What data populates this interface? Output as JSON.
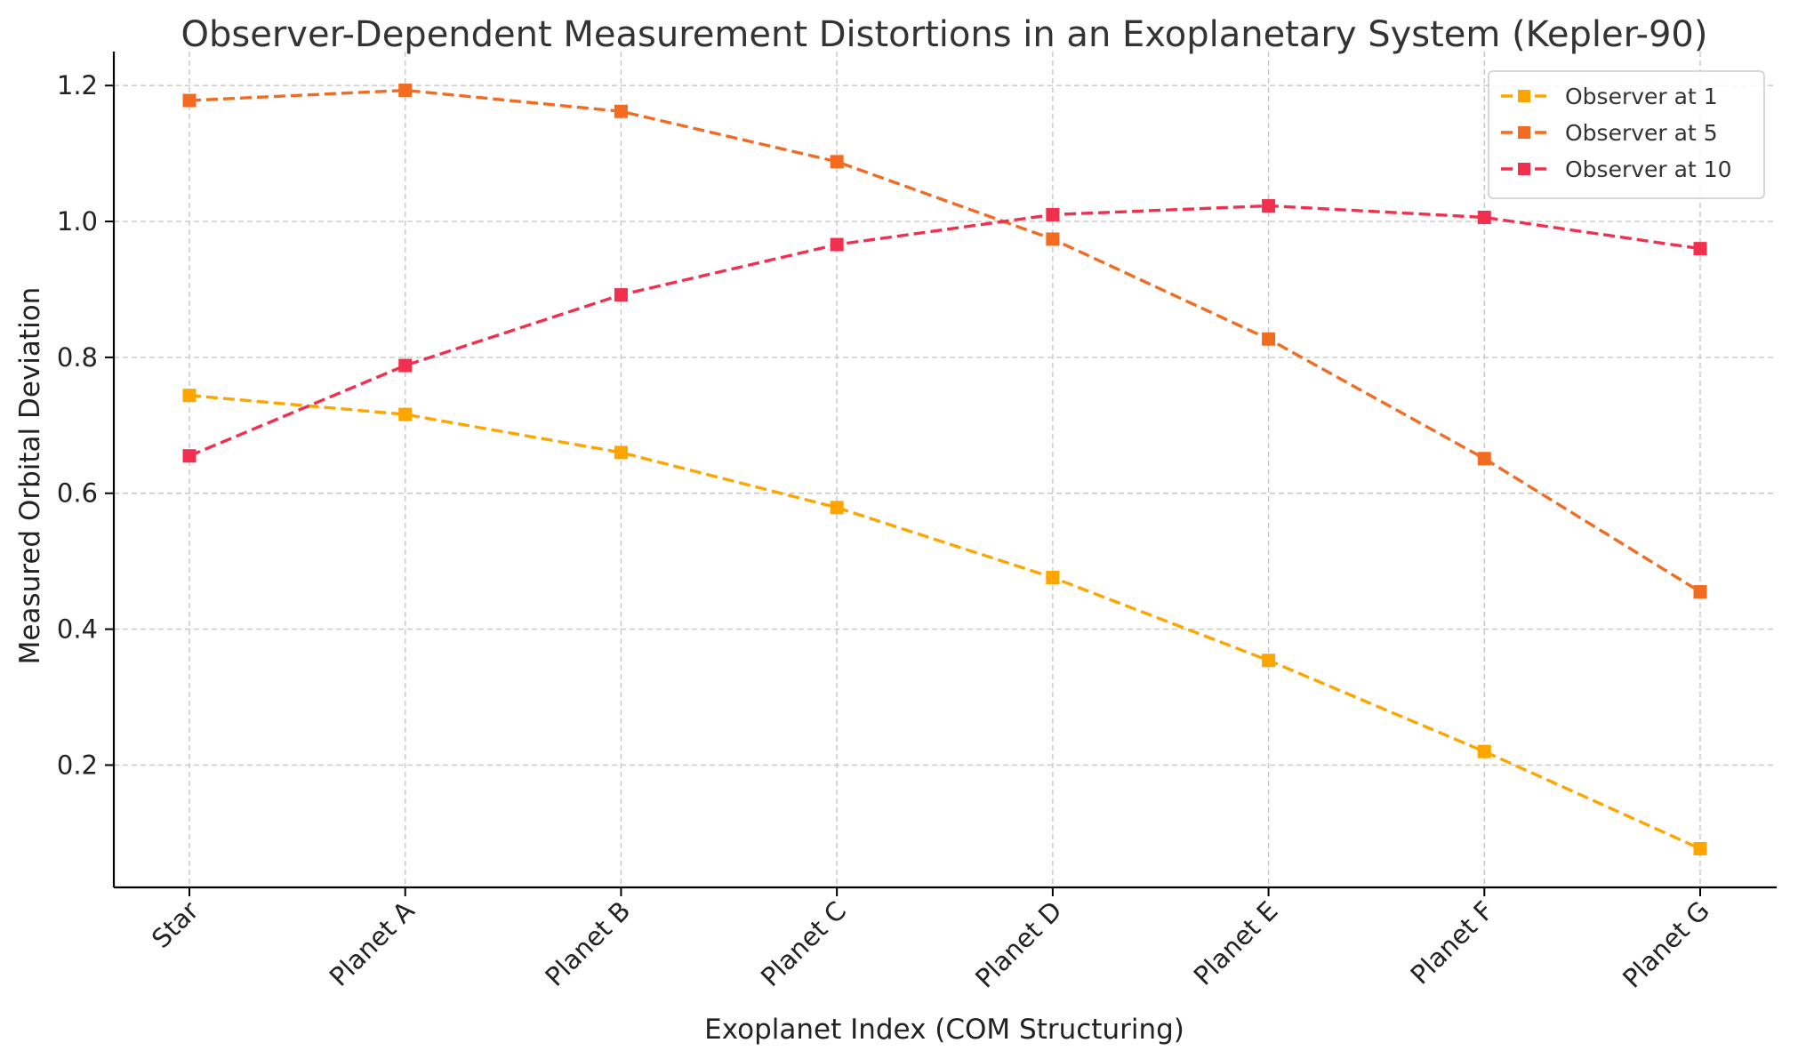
{
  "chart_data": {
    "type": "line",
    "title": "Observer-Dependent Measurement Distortions in an Exoplanetary System (Kepler-90)",
    "xlabel": "Exoplanet Index (COM Structuring)",
    "ylabel": "Measured Orbital Deviation",
    "categories": [
      "Star",
      "Planet A",
      "Planet B",
      "Planet C",
      "Planet D",
      "Planet E",
      "Planet F",
      "Planet G"
    ],
    "ylim": [
      0.02,
      1.25
    ],
    "yticks": [
      0.2,
      0.4,
      0.6,
      0.8,
      1.0,
      1.2
    ],
    "ytick_labels": [
      "0.2",
      "0.4",
      "0.6",
      "0.8",
      "1.0",
      "1.2"
    ],
    "grid": true,
    "legend_position": "top-right",
    "series": [
      {
        "name": "Observer at 1",
        "color": "#FFA500",
        "marker": "square",
        "line_style": "dashed",
        "values": [
          0.744,
          0.716,
          0.66,
          0.579,
          0.476,
          0.354,
          0.22,
          0.077
        ]
      },
      {
        "name": "Observer at 5",
        "color": "#F26B21",
        "marker": "square",
        "line_style": "dashed",
        "values": [
          1.178,
          1.193,
          1.162,
          1.088,
          0.974,
          0.827,
          0.651,
          0.455
        ]
      },
      {
        "name": "Observer at 10",
        "color": "#F0304E",
        "marker": "square",
        "line_style": "dashed",
        "values": [
          0.655,
          0.788,
          0.892,
          0.966,
          1.01,
          1.023,
          1.006,
          0.96
        ]
      }
    ]
  }
}
